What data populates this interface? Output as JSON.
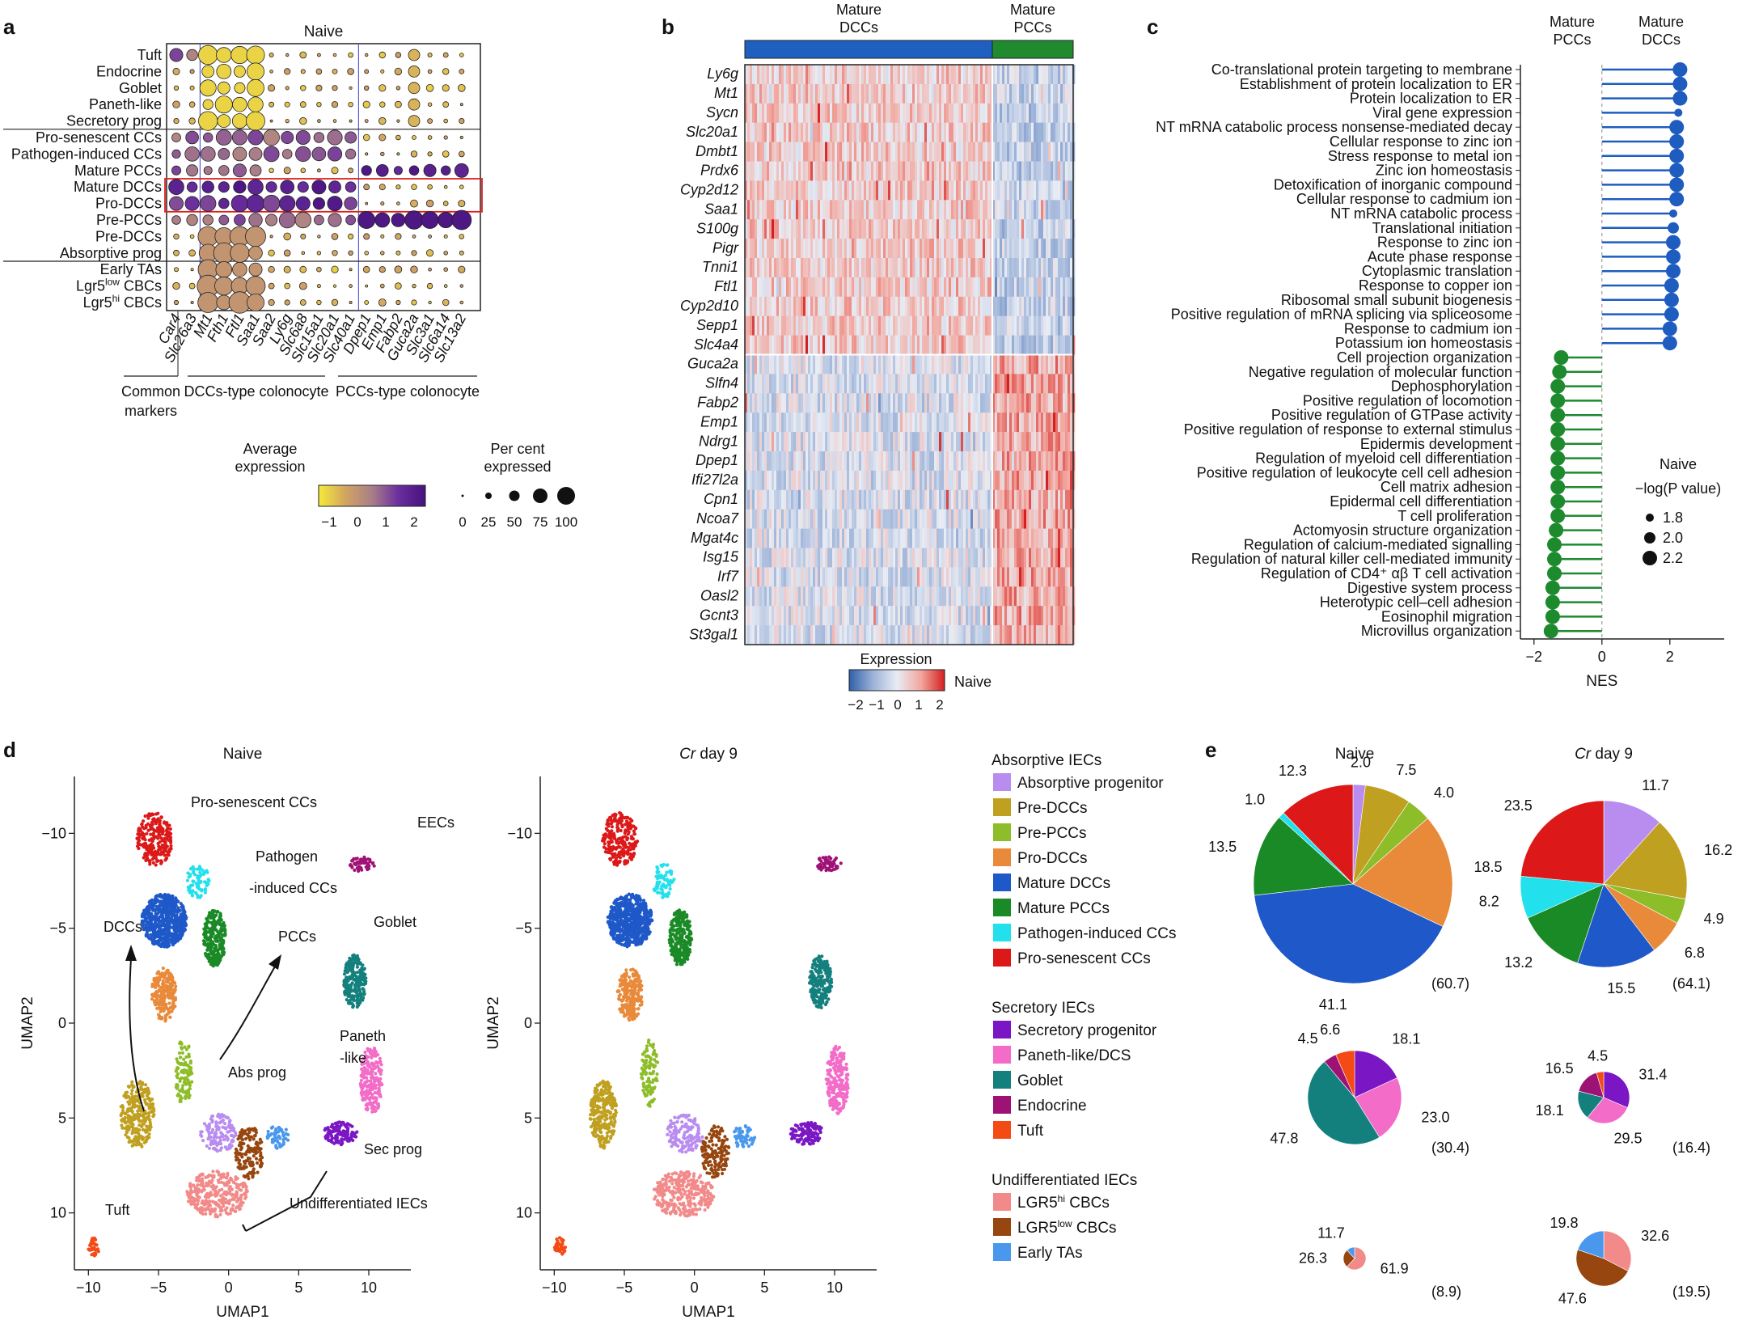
{
  "panel_labels": [
    "a",
    "b",
    "c",
    "d",
    "e"
  ],
  "chart_data": [
    {
      "panel": "a",
      "type": "dotplot",
      "title": "Naive",
      "rows": [
        "Tuft",
        "Endocrine",
        "Goblet",
        "Paneth-like",
        "Secretory prog",
        "Pro-senescent CCs",
        "Pathogen-induced CCs",
        "Mature PCCs",
        "Mature DCCs",
        "Pro-DCCs",
        "Pre-PCCs",
        "Pre-DCCs",
        "Absorptive prog",
        "Early TAs",
        "Lgr5low CBCs",
        "Lgr5hi CBCs"
      ],
      "row_display": [
        [
          "Tuft",
          ""
        ],
        [
          "Endocrine",
          ""
        ],
        [
          "Goblet",
          ""
        ],
        [
          "Paneth-like",
          ""
        ],
        [
          "Secretory prog",
          ""
        ],
        [
          "Pro-senescent CCs",
          ""
        ],
        [
          "Pathogen-induced CCs",
          ""
        ],
        [
          "Mature PCCs",
          ""
        ],
        [
          "Mature DCCs",
          ""
        ],
        [
          "Pro-DCCs",
          ""
        ],
        [
          "Pre-PCCs",
          ""
        ],
        [
          "Pre-DCCs",
          ""
        ],
        [
          "Absorptive prog",
          ""
        ],
        [
          "Early TAs",
          ""
        ],
        [
          "Lgr5",
          "low",
          " CBCs"
        ],
        [
          "Lgr5",
          "hi",
          " CBCs"
        ]
      ],
      "genes": [
        "Car4",
        "Slc26a3",
        "Mt1",
        "Fth1",
        "Ftl1",
        "Saa1",
        "Saa2",
        "Ly6g",
        "Slc6a8",
        "Slc15a1",
        "Slc20a1",
        "Slc40a1",
        "Dpep1",
        "Emp1",
        "Fabp2",
        "Guca2a",
        "Slc3a1",
        "Slc6a14",
        "Slc13a2"
      ],
      "gene_groups": [
        {
          "label": "Common\nmarkers",
          "from": 0,
          "to": 1
        },
        {
          "label": "DCCs-type colonocyte",
          "from": 2,
          "to": 11
        },
        {
          "label": "PCCs-type colonocyte",
          "from": 12,
          "to": 18
        }
      ],
      "color_legend": {
        "title": "Average\nexpression",
        "ticks": [
          "−1",
          "0",
          "1",
          "2"
        ],
        "colors": [
          "#f6ea3a",
          "#d2a560",
          "#a97e88",
          "#6a2e9e",
          "#46117e"
        ]
      },
      "size_legend": {
        "title": "Per cent\nexpressed",
        "ticks": [
          "0",
          "25",
          "50",
          "75",
          "100"
        ]
      },
      "highlight_rows": [
        "Mature DCCs",
        "Pro-DCCs"
      ]
    },
    {
      "panel": "b",
      "type": "heatmap",
      "column_groups": [
        {
          "label": "Mature\nDCCs",
          "color": "#1f5fbf"
        },
        {
          "label": "Mature\nPCCs",
          "color": "#1f8a2e"
        }
      ],
      "genes": [
        "Ly6g",
        "Mt1",
        "Sycn",
        "Slc20a1",
        "Dmbt1",
        "Prdx6",
        "Cyp2d12",
        "Saa1",
        "S100g",
        "Pigr",
        "Tnni1",
        "Ftl1",
        "Cyp2d10",
        "Sepp1",
        "Slc4a4",
        "Guca2a",
        "Slfn4",
        "Fabp2",
        "Emp1",
        "Ndrg1",
        "Dpep1",
        "Ifi27l2a",
        "Cpn1",
        "Ncoa7",
        "Mgat4c",
        "Isg15",
        "Irf7",
        "Oasl2",
        "Gcnt3",
        "St3gal1"
      ],
      "legend": {
        "title": "Expression",
        "ticks": [
          "−2",
          "−1",
          "0",
          "1",
          "2"
        ],
        "label": "Naive"
      }
    },
    {
      "panel": "c",
      "type": "lollipop",
      "top_labels": [
        "Mature\nPCCs",
        "Mature\nDCCs"
      ],
      "xlabel": "NES",
      "xticks": [
        "−2",
        "0",
        "2"
      ],
      "xlim": [
        -2.4,
        3.6
      ],
      "terms": [
        {
          "name": "Co-translational protein targeting to membrane",
          "nes": 2.3,
          "p": 2.2
        },
        {
          "name": "Establishment of protein localization to ER",
          "nes": 2.3,
          "p": 2.2
        },
        {
          "name": "Protein localization to ER",
          "nes": 2.3,
          "p": 2.2
        },
        {
          "name": "Viral gene expression",
          "nes": 2.25,
          "p": 1.8
        },
        {
          "name": "NT mRNA catabolic process nonsense-mediated decay",
          "nes": 2.2,
          "p": 2.2
        },
        {
          "name": "Cellular response to zinc ion",
          "nes": 2.2,
          "p": 2.2
        },
        {
          "name": "Stress response to metal ion",
          "nes": 2.2,
          "p": 2.2
        },
        {
          "name": "Zinc ion homeostasis",
          "nes": 2.2,
          "p": 2.2
        },
        {
          "name": "Detoxification of inorganic compound",
          "nes": 2.2,
          "p": 2.2
        },
        {
          "name": "Cellular response to cadmium ion",
          "nes": 2.2,
          "p": 2.2
        },
        {
          "name": "NT mRNA catabolic process",
          "nes": 2.1,
          "p": 1.8
        },
        {
          "name": "Translational initiation",
          "nes": 2.1,
          "p": 2.0
        },
        {
          "name": "Response to zinc ion",
          "nes": 2.1,
          "p": 2.2
        },
        {
          "name": "Acute phase response",
          "nes": 2.1,
          "p": 2.2
        },
        {
          "name": "Cytoplasmic translation",
          "nes": 2.1,
          "p": 2.2
        },
        {
          "name": "Response to copper ion",
          "nes": 2.05,
          "p": 2.2
        },
        {
          "name": "Ribosomal small subunit biogenesis",
          "nes": 2.05,
          "p": 2.2
        },
        {
          "name": "Positive regulation of mRNA splicing via spliceosome",
          "nes": 2.05,
          "p": 2.2
        },
        {
          "name": "Response to cadmium ion",
          "nes": 2.0,
          "p": 2.2
        },
        {
          "name": "Potassium ion homeostasis",
          "nes": 2.0,
          "p": 2.2
        },
        {
          "name": "Cell projection organization",
          "nes": -1.2,
          "p": 2.2
        },
        {
          "name": "Negative regulation of molecular function",
          "nes": -1.25,
          "p": 2.2
        },
        {
          "name": "Dephosphorylation",
          "nes": -1.3,
          "p": 2.2
        },
        {
          "name": "Positive regulation of locomotion",
          "nes": -1.3,
          "p": 2.2
        },
        {
          "name": "Positive regulation of GTPase activity",
          "nes": -1.3,
          "p": 2.2
        },
        {
          "name": "Positive regulation of response to external stimulus",
          "nes": -1.3,
          "p": 2.2
        },
        {
          "name": "Epidermis development",
          "nes": -1.3,
          "p": 2.2
        },
        {
          "name": "Regulation of myeloid cell differentiation",
          "nes": -1.3,
          "p": 2.2
        },
        {
          "name": "Positive regulation of leukocyte cell cell adhesion",
          "nes": -1.3,
          "p": 2.2
        },
        {
          "name": "Cell matrix adhesion",
          "nes": -1.3,
          "p": 2.2
        },
        {
          "name": "Epidermal cell differentiation",
          "nes": -1.3,
          "p": 2.2
        },
        {
          "name": "T cell proliferation",
          "nes": -1.3,
          "p": 2.2
        },
        {
          "name": "Actomyosin structure organization",
          "nes": -1.35,
          "p": 2.2
        },
        {
          "name": "Regulation of calcium-mediated signalling",
          "nes": -1.4,
          "p": 2.2
        },
        {
          "name": "Regulation of natural killer cell-mediated immunity",
          "nes": -1.4,
          "p": 2.2
        },
        {
          "name": "Regulation of CD4⁺ αβ T cell activation",
          "nes": -1.4,
          "p": 2.2
        },
        {
          "name": "Digestive system process",
          "nes": -1.45,
          "p": 2.2
        },
        {
          "name": "Heterotypic cell–cell adhesion",
          "nes": -1.45,
          "p": 2.2
        },
        {
          "name": "Eosinophil migration",
          "nes": -1.45,
          "p": 2.2
        },
        {
          "name": "Microvillus organization",
          "nes": -1.5,
          "p": 2.2
        }
      ],
      "legend": {
        "title": "Naive",
        "subtitle": "−log(P value)",
        "values": [
          "1.8",
          "2.0",
          "2.2"
        ]
      }
    },
    {
      "panel": "d",
      "type": "scatter",
      "plots": [
        {
          "title": "Naive",
          "labels": [
            "Pro-senescent CCs",
            "EECs",
            "Pathogen",
            "-induced CCs",
            "DCCs",
            "PCCs",
            "Goblet",
            "Paneth",
            "-like",
            "Abs prog",
            "Sec prog",
            "Undifferentiated IECs",
            "Tuft"
          ]
        },
        {
          "title": "Cr day 9",
          "title_italic": "Cr",
          "title_rest": " day 9",
          "labels": []
        }
      ],
      "xlabel": "UMAP1",
      "ylabel": "UMAP2",
      "xticks": [
        "−10",
        "−5",
        "0",
        "5",
        "10"
      ],
      "yticks": [
        "−10",
        "−5",
        "0",
        "5",
        "10"
      ],
      "xlim": [
        -11,
        13
      ],
      "ylim": [
        -13,
        13
      ]
    },
    {
      "panel": "e",
      "type": "pie",
      "titles": [
        "Naive",
        "Cr day 9"
      ],
      "groups": [
        {
          "name": "Absorptive IECs",
          "items": [
            {
              "name": "Absorptive progenitor",
              "color": "#b98cf0"
            },
            {
              "name": "Pre-DCCs",
              "color": "#c0a020"
            },
            {
              "name": "Pre-PCCs",
              "color": "#8dbd28"
            },
            {
              "name": "Pro-DCCs",
              "color": "#e88a3a"
            },
            {
              "name": "Mature DCCs",
              "color": "#1f58c8"
            },
            {
              "name": "Mature PCCs",
              "color": "#1a8a26"
            },
            {
              "name": "Pathogen-induced CCs",
              "color": "#22e0ec"
            },
            {
              "name": "Pro-senescent CCs",
              "color": "#dc1818"
            }
          ]
        },
        {
          "name": "Secretory IECs",
          "items": [
            {
              "name": "Secretory progenitor",
              "color": "#7a16c4"
            },
            {
              "name": "Paneth-like/DCS",
              "color": "#f26cc8"
            },
            {
              "name": "Goblet",
              "color": "#14807e"
            },
            {
              "name": "Endocrine",
              "color": "#9e1276"
            },
            {
              "name": "Tuft",
              "color": "#f44a14"
            }
          ]
        },
        {
          "name": "Undifferentiated IECs",
          "items": [
            {
              "name": "LGR5hi CBCs",
              "sup": "hi",
              "pre": "LGR5",
              "post": " CBCs",
              "color": "#f28a8a"
            },
            {
              "name": "LGR5low CBCs",
              "sup": "low",
              "pre": "LGR5",
              "post": " CBCs",
              "color": "#96460e"
            },
            {
              "name": "Early TAs",
              "color": "#4a98ee"
            }
          ]
        }
      ],
      "pies": [
        {
          "row": 0,
          "col": 0,
          "total": "(60.7)",
          "slices": [
            {
              "c": "Absorptive progenitor",
              "v": 2.0
            },
            {
              "c": "Pre-DCCs",
              "v": 7.5
            },
            {
              "c": "Pre-PCCs",
              "v": 4.0
            },
            {
              "c": "Pro-DCCs",
              "v": 18.5
            },
            {
              "c": "Mature DCCs",
              "v": 41.1
            },
            {
              "c": "Mature PCCs",
              "v": 13.5
            },
            {
              "c": "Pathogen-induced CCs",
              "v": 1.0
            },
            {
              "c": "Pro-senescent CCs",
              "v": 12.3
            }
          ]
        },
        {
          "row": 0,
          "col": 1,
          "total": "(64.1)",
          "slices": [
            {
              "c": "Absorptive progenitor",
              "v": 11.7
            },
            {
              "c": "Pre-DCCs",
              "v": 16.2
            },
            {
              "c": "Pre-PCCs",
              "v": 4.9
            },
            {
              "c": "Pro-DCCs",
              "v": 6.8
            },
            {
              "c": "Mature DCCs",
              "v": 15.5
            },
            {
              "c": "Mature PCCs",
              "v": 13.2
            },
            {
              "c": "Pathogen-induced CCs",
              "v": 8.2
            },
            {
              "c": "Pro-senescent CCs",
              "v": 23.5
            }
          ]
        },
        {
          "row": 1,
          "col": 0,
          "total": "(30.4)",
          "slices": [
            {
              "c": "Secretory progenitor",
              "v": 18.1
            },
            {
              "c": "Paneth-like/DCS",
              "v": 23.0
            },
            {
              "c": "Goblet",
              "v": 47.8
            },
            {
              "c": "Endocrine",
              "v": 4.5
            },
            {
              "c": "Tuft",
              "v": 6.6
            }
          ]
        },
        {
          "row": 1,
          "col": 1,
          "total": "(16.4)",
          "slices": [
            {
              "c": "Secretory progenitor",
              "v": 31.4
            },
            {
              "c": "Paneth-like/DCS",
              "v": 29.5
            },
            {
              "c": "Goblet",
              "v": 18.1
            },
            {
              "c": "Endocrine",
              "v": 16.5
            },
            {
              "c": "Tuft",
              "v": 4.5
            }
          ]
        },
        {
          "row": 2,
          "col": 0,
          "total": "(8.9)",
          "slices": [
            {
              "c": "LGR5hi CBCs",
              "v": 61.9
            },
            {
              "c": "LGR5low CBCs",
              "v": 26.3
            },
            {
              "c": "Early TAs",
              "v": 11.7
            }
          ]
        },
        {
          "row": 2,
          "col": 1,
          "total": "(19.5)",
          "slices": [
            {
              "c": "LGR5hi CBCs",
              "v": 32.6
            },
            {
              "c": "LGR5low CBCs",
              "v": 47.6
            },
            {
              "c": "Early TAs",
              "v": 19.8
            }
          ]
        }
      ]
    }
  ]
}
